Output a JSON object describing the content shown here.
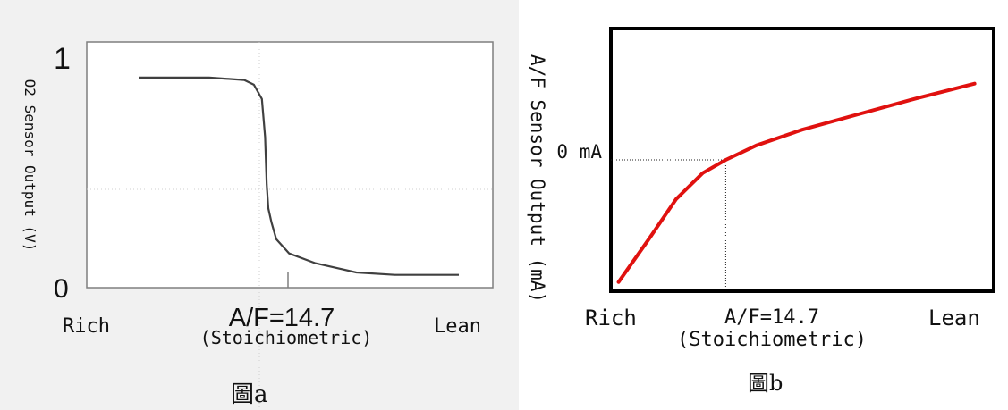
{
  "chart_data": [
    {
      "type": "line",
      "panel": "a",
      "ylabel": "O2 Sensor Output (V)",
      "y_ticks": [
        "1",
        "0"
      ],
      "ylim": [
        0,
        1
      ],
      "x_labels": {
        "left": "Rich",
        "center": "A/F=14.7",
        "center_sub": "(Stoichiometric)",
        "right": "Lean"
      },
      "xlim": [
        0,
        1
      ],
      "caption": "圖a",
      "line_color": "#404040",
      "series": [
        {
          "x": [
            0.0,
            0.22,
            0.33,
            0.36,
            0.385,
            0.395,
            0.4,
            0.405,
            0.415,
            0.43,
            0.47,
            0.55,
            0.68,
            0.8,
            1.0
          ],
          "y": [
            0.85,
            0.85,
            0.84,
            0.82,
            0.76,
            0.6,
            0.4,
            0.3,
            0.24,
            0.17,
            0.11,
            0.07,
            0.03,
            0.02,
            0.02
          ]
        }
      ]
    },
    {
      "type": "line",
      "panel": "b",
      "ylabel": "A/F Sensor Output (mA)",
      "y_ticks": [
        "0 mA"
      ],
      "x_labels": {
        "left": "Rich",
        "center": "A/F=14.7",
        "center_sub": "(Stoichiometric)",
        "right": "Lean"
      },
      "ref_point": {
        "x": 0.0,
        "y": 0.0
      },
      "xlim": [
        -0.3,
        0.7
      ],
      "ylim": [
        -1.0,
        1.0
      ],
      "caption": "圖b",
      "line_color": "#e0110f",
      "series": [
        {
          "x": [
            -0.28,
            -0.2,
            -0.13,
            -0.06,
            0.0,
            0.08,
            0.2,
            0.35,
            0.5,
            0.65
          ],
          "y": [
            -0.93,
            -0.6,
            -0.3,
            -0.1,
            0.0,
            0.11,
            0.23,
            0.35,
            0.47,
            0.58
          ]
        }
      ]
    }
  ]
}
